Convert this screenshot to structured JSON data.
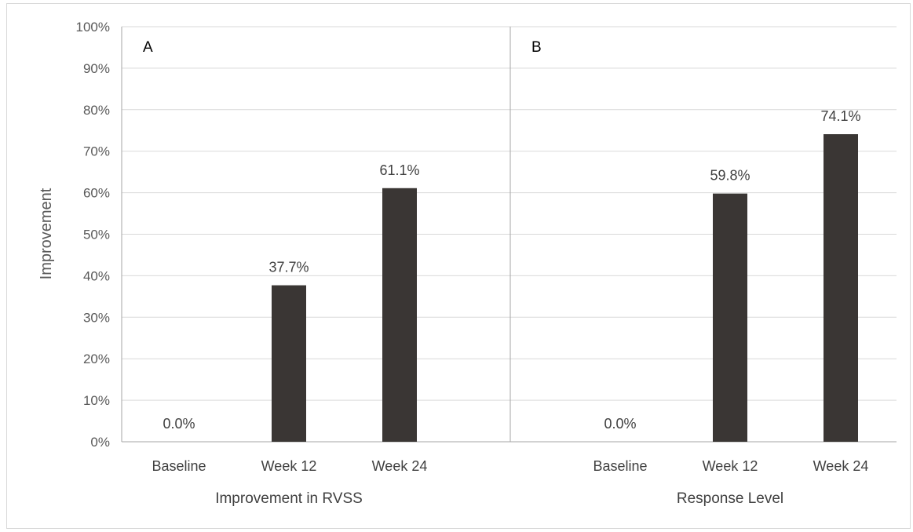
{
  "chart_data": {
    "type": "bar",
    "ylabel": "Improvement",
    "ylim": [
      0,
      100
    ],
    "yticks": [
      "0%",
      "10%",
      "20%",
      "30%",
      "40%",
      "50%",
      "60%",
      "70%",
      "80%",
      "90%",
      "100%"
    ],
    "grid": true,
    "colors": {
      "bar": "#3a3634",
      "grid": "#d9d9d9",
      "axis": "#a6a6a6"
    },
    "panels": [
      {
        "letter": "A",
        "group_label": "Improvement in RVSS",
        "categories": [
          "Baseline",
          "Week 12",
          "Week 24"
        ],
        "values": [
          0.0,
          37.7,
          61.1
        ],
        "data_labels": [
          "0.0%",
          "37.7%",
          "61.1%"
        ]
      },
      {
        "letter": "B",
        "group_label": "Response Level",
        "categories": [
          "Baseline",
          "Week 12",
          "Week 24"
        ],
        "values": [
          0.0,
          59.8,
          74.1
        ],
        "data_labels": [
          "0.0%",
          "59.8%",
          "74.1%"
        ]
      }
    ]
  }
}
